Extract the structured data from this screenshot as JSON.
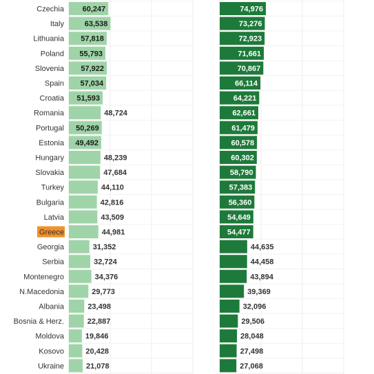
{
  "chart_data": [
    {
      "type": "bar",
      "orientation": "horizontal",
      "categories": [
        "Czechia",
        "Italy",
        "Lithuania",
        "Poland",
        "Slovenia",
        "Spain",
        "Croatia",
        "Romania",
        "Portugal",
        "Estonia",
        "Hungary",
        "Slovakia",
        "Turkey",
        "Bulgaria",
        "Latvia",
        "Greece",
        "Georgia",
        "Serbia",
        "Montenegro",
        "N.Macedonia",
        "Albania",
        "Bosnia & Herz.",
        "Moldova",
        "Kosovo",
        "Ukraine"
      ],
      "values": [
        60247,
        63538,
        57818,
        55793,
        57922,
        57034,
        51593,
        48724,
        50269,
        49492,
        48239,
        47684,
        44110,
        42816,
        43509,
        44981,
        31352,
        32724,
        34376,
        29773,
        23498,
        22887,
        19846,
        20428,
        21078
      ],
      "value_labels": [
        "60,247",
        "63,538",
        "57,818",
        "55,793",
        "57,922",
        "57,034",
        "51,593",
        "48,724",
        "50,269",
        "49,492",
        "48,239",
        "47,684",
        "44,110",
        "42,816",
        "43,509",
        "44,981",
        "31,352",
        "32,724",
        "34,376",
        "29,773",
        "23,498",
        "22,887",
        "19,846",
        "20,428",
        "21,078"
      ],
      "color": "#9fd4a8",
      "highlight": {
        "category": "Greece",
        "color": "#f0922b"
      },
      "grid": true
    },
    {
      "type": "bar",
      "orientation": "horizontal",
      "categories": [
        "Czechia",
        "Italy",
        "Lithuania",
        "Poland",
        "Slovenia",
        "Spain",
        "Croatia",
        "Romania",
        "Portugal",
        "Estonia",
        "Hungary",
        "Slovakia",
        "Turkey",
        "Bulgaria",
        "Latvia",
        "Greece",
        "Georgia",
        "Serbia",
        "Montenegro",
        "N.Macedonia",
        "Albania",
        "Bosnia & Herz.",
        "Moldova",
        "Kosovo",
        "Ukraine"
      ],
      "values": [
        74976,
        73276,
        72923,
        71661,
        70867,
        66114,
        64221,
        62661,
        61479,
        60578,
        60302,
        58790,
        57383,
        56360,
        54649,
        54477,
        44635,
        44458,
        43894,
        39369,
        32096,
        29506,
        28048,
        27498,
        27068
      ],
      "value_labels": [
        "74,976",
        "73,276",
        "72,923",
        "71,661",
        "70,867",
        "66,114",
        "64,221",
        "62,661",
        "61,479",
        "60,578",
        "60,302",
        "58,790",
        "57,383",
        "56,360",
        "54,649",
        "54,477",
        "44,635",
        "44,458",
        "43,894",
        "39,369",
        "32,096",
        "29,506",
        "28,048",
        "27,498",
        "27,068"
      ],
      "color": "#1e7a3a",
      "grid": true
    }
  ]
}
